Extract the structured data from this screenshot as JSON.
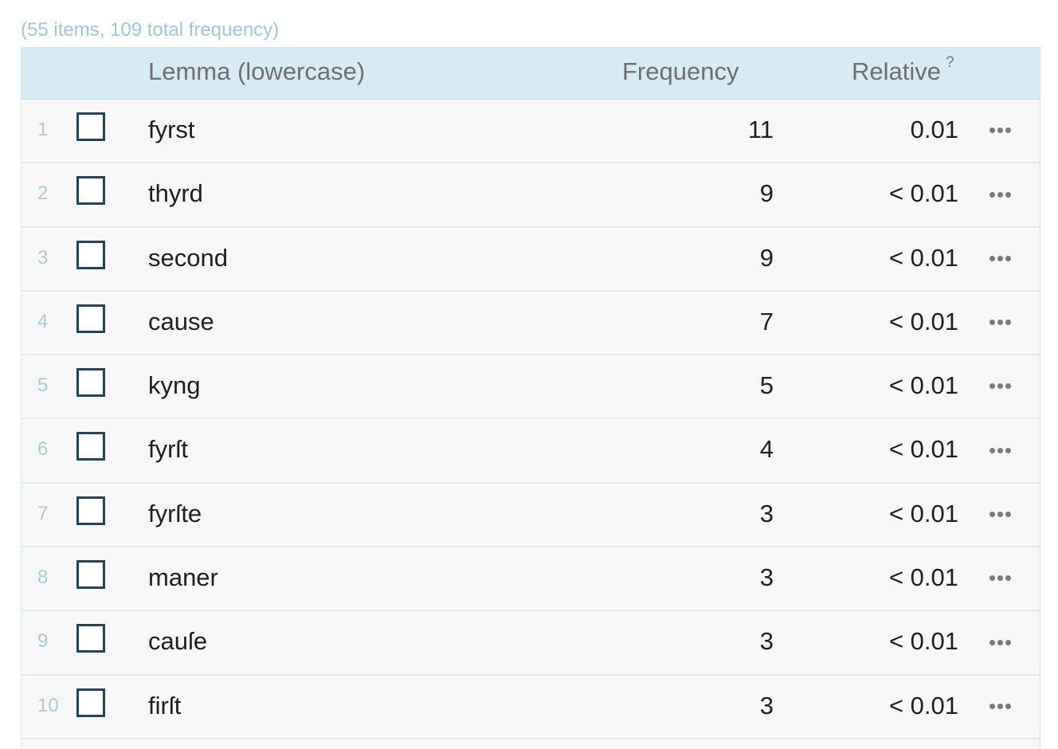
{
  "summary": "(55 items, 109 total frequency)",
  "header": {
    "lemma": "Lemma (lowercase)",
    "frequency": "Frequency",
    "relative": "Relative",
    "relative_help": "?"
  },
  "rows": [
    {
      "index": "1",
      "lemma": "fyrst",
      "frequency": "11",
      "relative": "0.01"
    },
    {
      "index": "2",
      "lemma": "thyrd",
      "frequency": "9",
      "relative": "< 0.01"
    },
    {
      "index": "3",
      "lemma": "second",
      "frequency": "9",
      "relative": "< 0.01"
    },
    {
      "index": "4",
      "lemma": "cause",
      "frequency": "7",
      "relative": "< 0.01"
    },
    {
      "index": "5",
      "lemma": "kyng",
      "frequency": "5",
      "relative": "< 0.01"
    },
    {
      "index": "6",
      "lemma": "fyrſt",
      "frequency": "4",
      "relative": "< 0.01"
    },
    {
      "index": "7",
      "lemma": "fyrſte",
      "frequency": "3",
      "relative": "< 0.01"
    },
    {
      "index": "8",
      "lemma": "maner",
      "frequency": "3",
      "relative": "< 0.01"
    },
    {
      "index": "9",
      "lemma": "cauſe",
      "frequency": "3",
      "relative": "< 0.01"
    },
    {
      "index": "10",
      "lemma": "firſt",
      "frequency": "3",
      "relative": "< 0.01"
    }
  ],
  "icons": {
    "checkbox": "checkbox-unchecked-icon",
    "more": "more-options-icon"
  }
}
